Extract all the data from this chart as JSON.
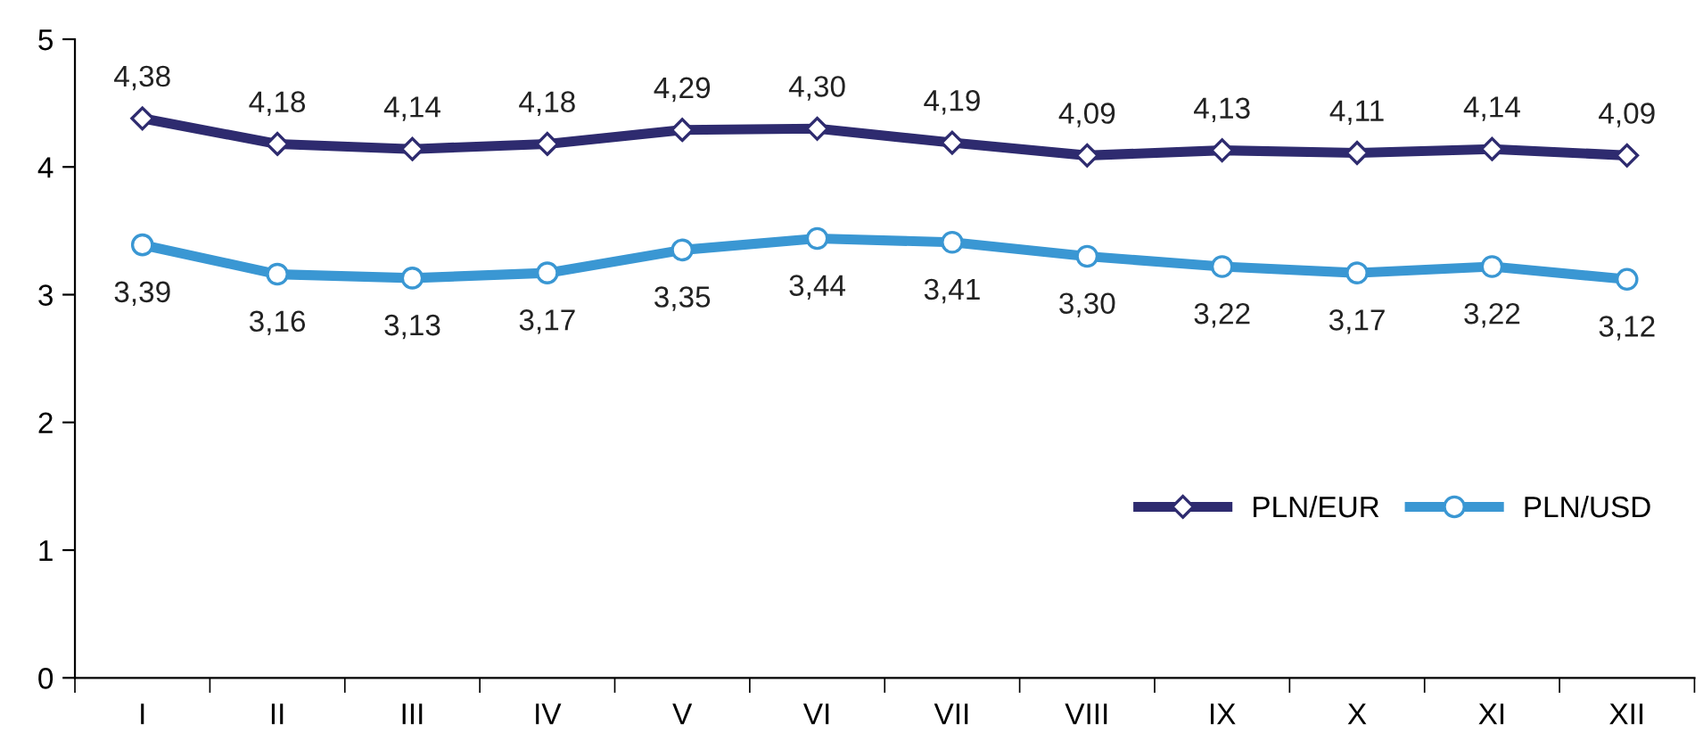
{
  "chart_data": {
    "type": "line",
    "categories": [
      "I",
      "II",
      "III",
      "IV",
      "V",
      "VI",
      "VII",
      "VIII",
      "IX",
      "X",
      "XI",
      "XII"
    ],
    "series": [
      {
        "name": "PLN/EUR",
        "color": "#2e2b6f",
        "marker": "diamond",
        "values": [
          4.38,
          4.18,
          4.14,
          4.18,
          4.29,
          4.3,
          4.19,
          4.09,
          4.13,
          4.11,
          4.14,
          4.09
        ],
        "value_labels": [
          "4,38",
          "4,18",
          "4,14",
          "4,18",
          "4,29",
          "4,30",
          "4,19",
          "4,09",
          "4,13",
          "4,11",
          "4,14",
          "4,09"
        ]
      },
      {
        "name": "PLN/USD",
        "color": "#3a97d3",
        "marker": "circle",
        "values": [
          3.39,
          3.16,
          3.13,
          3.17,
          3.35,
          3.44,
          3.41,
          3.3,
          3.22,
          3.17,
          3.22,
          3.12
        ],
        "value_labels": [
          "3,39",
          "3,16",
          "3,13",
          "3,17",
          "3,35",
          "3,44",
          "3,41",
          "3,30",
          "3,22",
          "3,17",
          "3,22",
          "3,12"
        ]
      }
    ],
    "ylim": [
      0,
      5
    ],
    "yticks": [
      0,
      1,
      2,
      3,
      4,
      5
    ],
    "grid": false,
    "legend": "bottom right",
    "line_style": "solid"
  }
}
